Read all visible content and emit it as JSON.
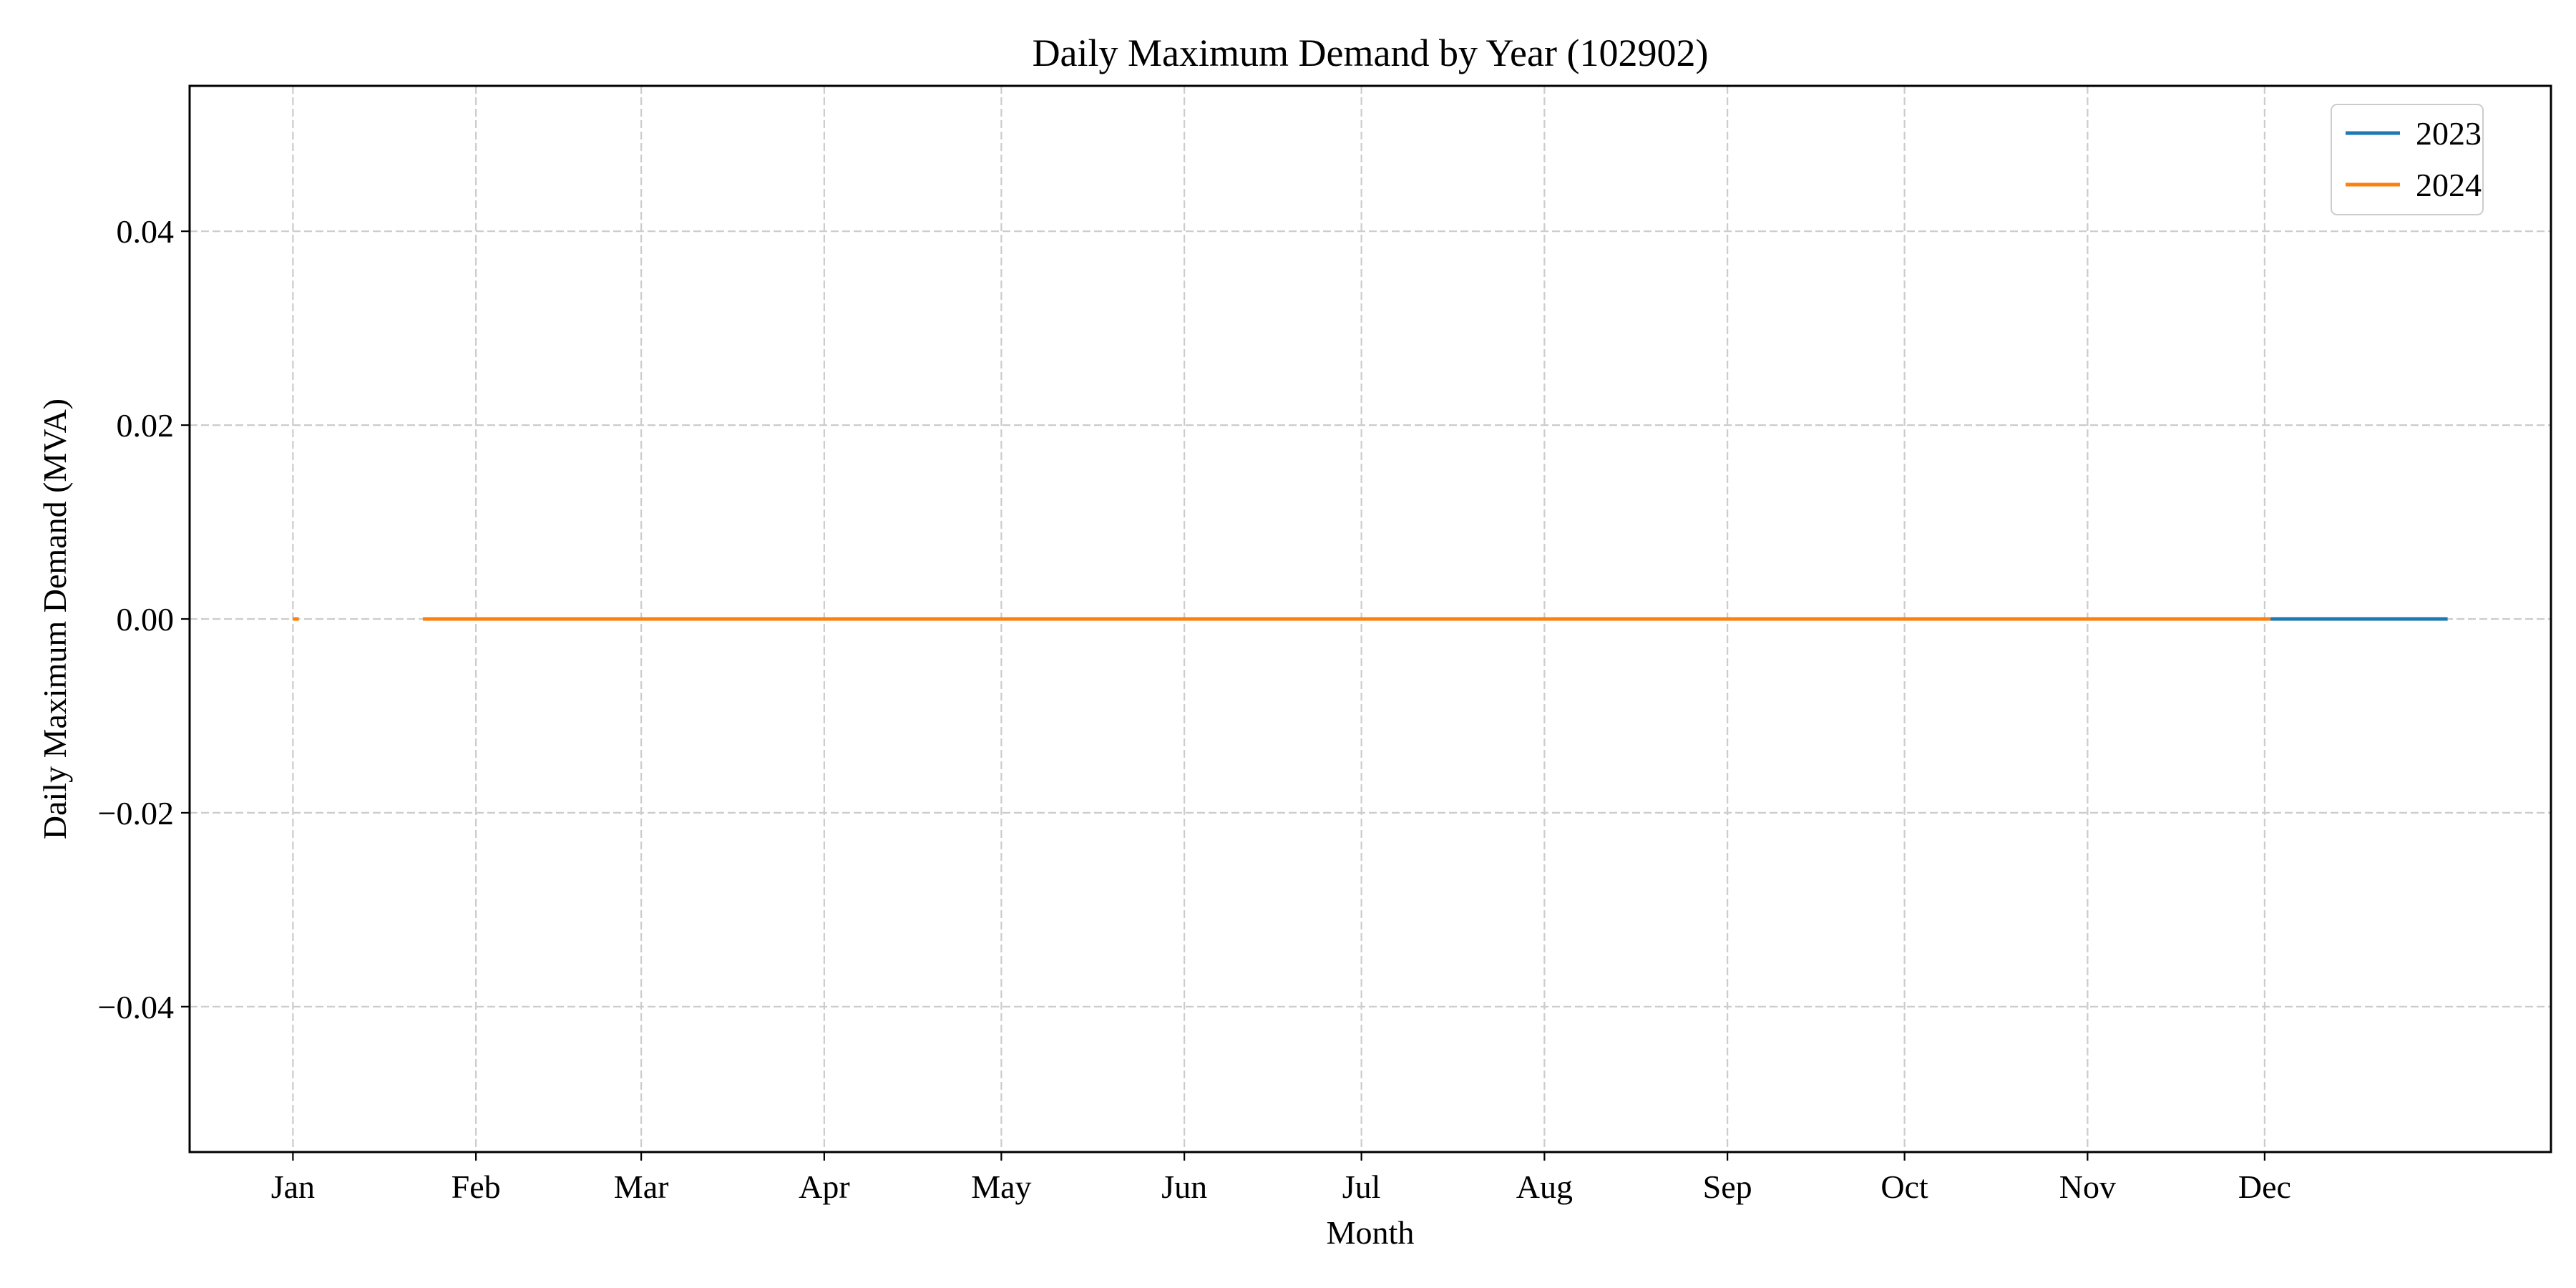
{
  "chart_data": {
    "type": "line",
    "title": "Daily Maximum Demand by Year (102902)",
    "xlabel": "Month",
    "ylabel": "Daily Maximum Demand (MVA)",
    "x_tick_labels": [
      "Jan",
      "Feb",
      "Mar",
      "Apr",
      "May",
      "Jun",
      "Jul",
      "Aug",
      "Sep",
      "Oct",
      "Nov",
      "Dec"
    ],
    "x_tick_days": [
      1,
      32,
      60,
      91,
      121,
      152,
      182,
      213,
      244,
      274,
      305,
      335
    ],
    "xlim_days": [
      -16.5,
      383.5
    ],
    "ylim": [
      -0.055,
      0.055
    ],
    "y_ticks": [
      -0.04,
      -0.02,
      0.0,
      0.02,
      0.04
    ],
    "y_tick_labels": [
      "−0.04",
      "−0.02",
      "0.00",
      "0.02",
      "0.04"
    ],
    "grid": true,
    "legend_position": "top-right",
    "series": [
      {
        "name": "2023",
        "color": "#1f77b4",
        "segments": [
          {
            "x_days": [
              336,
              366
            ],
            "y": [
              0.0,
              0.0
            ]
          }
        ]
      },
      {
        "name": "2024",
        "color": "#ff7f0e",
        "segments": [
          {
            "x_days": [
              1,
              2
            ],
            "y": [
              0.0,
              0.0
            ]
          },
          {
            "x_days": [
              23,
              336
            ],
            "y": [
              0.0,
              0.0
            ]
          }
        ]
      }
    ]
  }
}
